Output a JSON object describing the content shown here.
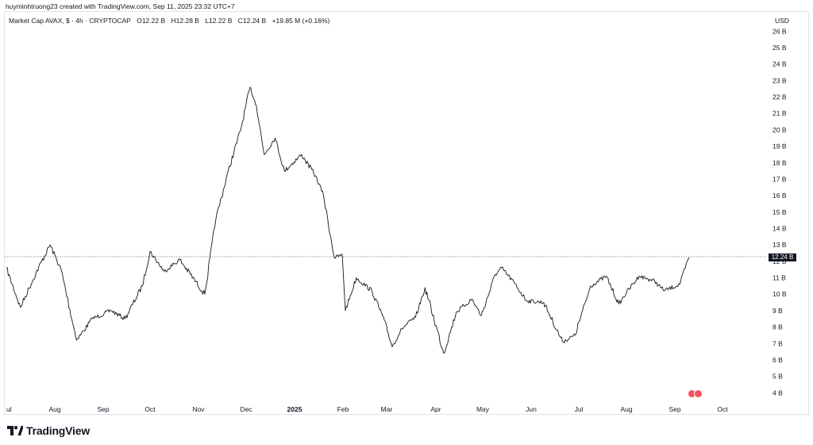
{
  "header": {
    "caption": "huyminhtruong23 created with TradingView.com, Sep 11, 2025 23:32 UTC+7"
  },
  "legend": {
    "symbol": "Market Cap AVAX, $ · 4h · CRYPTOCAP",
    "open": "O12.22 B",
    "high": "H12.28 B",
    "low": "L12.22 B",
    "close": "C12.24 B",
    "change": "+19.85 M (+0.16%)"
  },
  "currency": "USD",
  "price_tag": "12.24 B",
  "brand": "TradingView",
  "event_icons": [
    "us-flag-icon",
    "us-flag-icon"
  ],
  "colors": {
    "line": "#131722",
    "grid": "#e0e3eb",
    "price_line": "#787b86",
    "event": "#f7525f"
  },
  "chart_data": {
    "type": "line",
    "title": "",
    "xlabel": "",
    "ylabel": "",
    "ylim": [
      3.5,
      26.5
    ],
    "y_ticks": [
      "4 B",
      "5 B",
      "6 B",
      "7 B",
      "8 B",
      "9 B",
      "10 B",
      "11 B",
      "12 B",
      "13 B",
      "14 B",
      "15 B",
      "16 B",
      "17 B",
      "18 B",
      "19 B",
      "20 B",
      "21 B",
      "22 B",
      "23 B",
      "24 B",
      "25 B",
      "26 B"
    ],
    "x_ticks": [
      "ul",
      "Aug",
      "Sep",
      "Oct",
      "Nov",
      "Dec",
      "2025",
      "Feb",
      "Mar",
      "Apr",
      "May",
      "Jun",
      "Jul",
      "Aug",
      "Sep",
      "Oct"
    ],
    "x": [
      "2024-07-01",
      "2024-07-10",
      "2024-07-20",
      "2024-07-29",
      "2024-08-05",
      "2024-08-15",
      "2024-08-25",
      "2024-09-06",
      "2024-09-15",
      "2024-09-26",
      "2024-10-01",
      "2024-10-10",
      "2024-10-20",
      "2024-11-05",
      "2024-11-12",
      "2024-11-20",
      "2024-11-28",
      "2024-12-04",
      "2024-12-08",
      "2024-12-13",
      "2024-12-20",
      "2024-12-26",
      "2025-01-06",
      "2025-01-15",
      "2025-01-20",
      "2025-01-27",
      "2025-02-01",
      "2025-02-03",
      "2025-02-10",
      "2025-02-20",
      "2025-02-28",
      "2025-03-05",
      "2025-03-11",
      "2025-03-20",
      "2025-03-26",
      "2025-04-07",
      "2025-04-15",
      "2025-04-25",
      "2025-05-01",
      "2025-05-10",
      "2025-05-14",
      "2025-05-22",
      "2025-05-30",
      "2025-06-10",
      "2025-06-22",
      "2025-06-30",
      "2025-07-10",
      "2025-07-20",
      "2025-07-28",
      "2025-08-02",
      "2025-08-10",
      "2025-08-20",
      "2025-08-26",
      "2025-09-05",
      "2025-09-11"
    ],
    "series": [
      {
        "values": [
          11.6,
          9.2,
          11.3,
          13.0,
          11.5,
          7.2,
          8.5,
          9.0,
          8.5,
          10.5,
          12.6,
          11.4,
          12.1,
          10.0,
          14.5,
          17.5,
          20.0,
          22.6,
          21.5,
          18.5,
          19.5,
          17.5,
          18.5,
          17.2,
          16.0,
          12.2,
          12.4,
          9.0,
          11.0,
          10.2,
          8.4,
          6.8,
          7.9,
          8.6,
          10.4,
          6.4,
          8.9,
          9.7,
          8.7,
          11.2,
          11.6,
          10.7,
          9.6,
          9.5,
          7.1,
          7.5,
          10.5,
          11.1,
          9.4,
          10.1,
          11.1,
          10.8,
          10.2,
          10.6,
          12.24
        ]
      }
    ],
    "last_value_label": "12.24 B",
    "grid": false,
    "legend": "none"
  }
}
